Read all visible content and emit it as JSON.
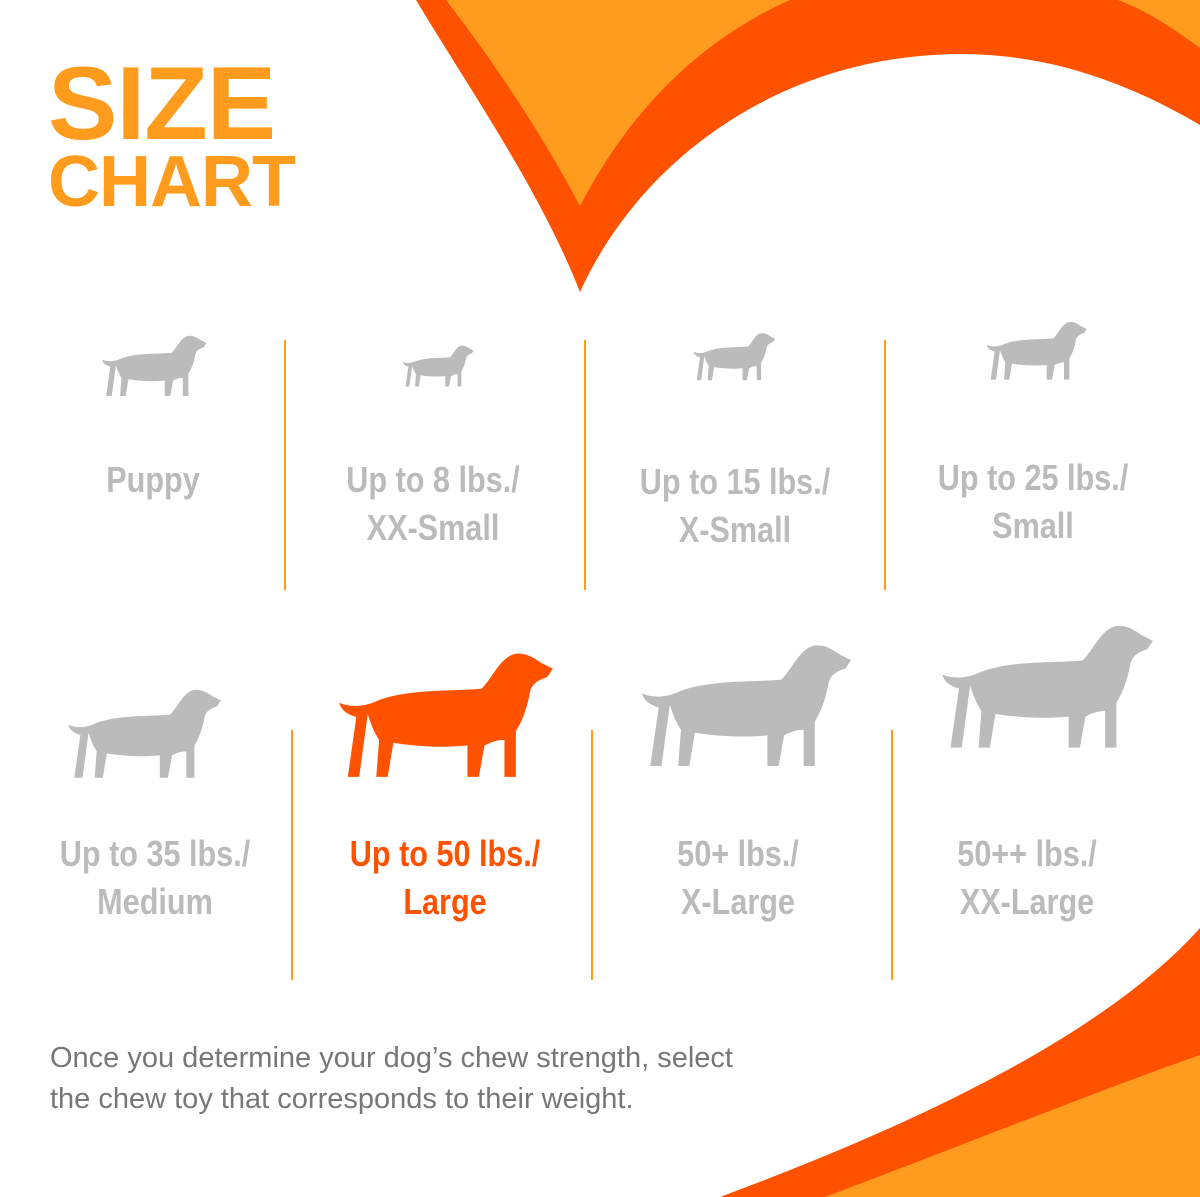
{
  "title": {
    "line1": "SIZE",
    "line2": "CHART"
  },
  "colors": {
    "accent_orange": "#FF9C1E",
    "accent_red": "#FF5200",
    "inactive_gray": "#BBBBBB",
    "text_gray": "#777777"
  },
  "sizes": [
    {
      "line1": "Puppy",
      "line2": "",
      "icon": "puppy-icon",
      "active": false
    },
    {
      "line1": "Up to 8 lbs./",
      "line2": "XX-Small",
      "icon": "chihuahua-icon",
      "active": false
    },
    {
      "line1": "Up to 15 lbs./",
      "line2": "X-Small",
      "icon": "toy-dog-icon",
      "active": false
    },
    {
      "line1": "Up to 25 lbs./",
      "line2": "Small",
      "icon": "terrier-icon",
      "active": false
    },
    {
      "line1": "Up to 35 lbs./",
      "line2": "Medium",
      "icon": "beagle-icon",
      "active": false
    },
    {
      "line1": "Up to 50 lbs./",
      "line2": "Large",
      "icon": "labrador-icon",
      "active": true
    },
    {
      "line1": "50+ lbs./",
      "line2": "X-Large",
      "icon": "shepherd-icon",
      "active": false
    },
    {
      "line1": "50++ lbs./",
      "line2": "XX-Large",
      "icon": "great-dane-icon",
      "active": false
    }
  ],
  "note": {
    "line1": "Once you determine your dog’s chew strength, select",
    "line2": "the chew toy that corresponds to their weight."
  }
}
